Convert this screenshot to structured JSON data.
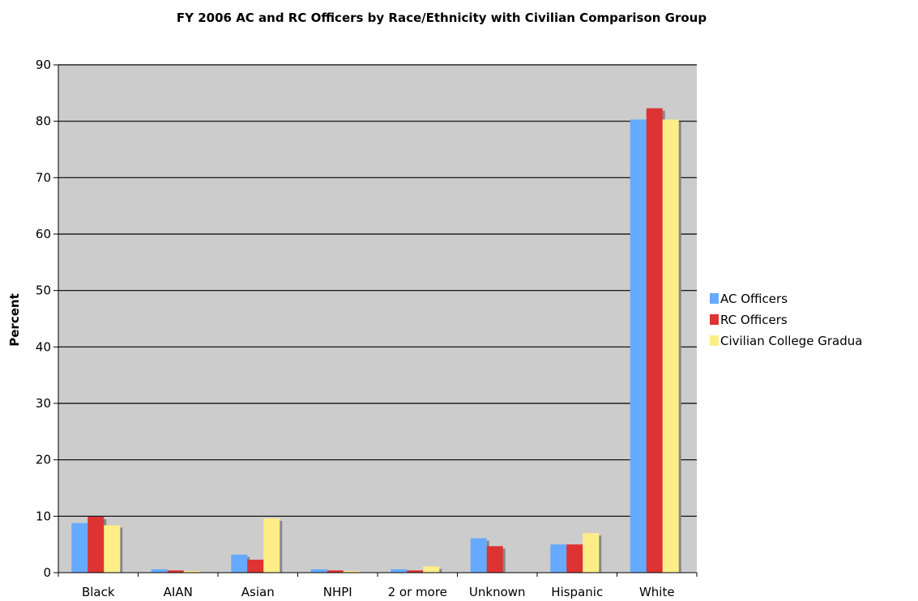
{
  "chart_data": {
    "type": "bar",
    "title": "FY 2006 AC and RC Officers by Race/Ethnicity with Civilian Comparison Group",
    "ylabel": "Percent",
    "xlabel": "",
    "ylim": [
      0,
      90
    ],
    "yticks": [
      0,
      10,
      20,
      30,
      40,
      50,
      60,
      70,
      80,
      90
    ],
    "grid": true,
    "legend_position": "right",
    "plot_background": "#cccccc",
    "categories": [
      "Black",
      "AIAN",
      "Asian",
      "NHPI",
      "2 or more",
      "Unknown",
      "Hispanic",
      "White"
    ],
    "series": [
      {
        "name": "AC Officers",
        "color": "#66aaff",
        "values": [
          8.8,
          0.6,
          3.2,
          0.6,
          0.6,
          6.1,
          5.0,
          80.3
        ]
      },
      {
        "name": "RC Officers",
        "color": "#dd3333",
        "values": [
          9.9,
          0.4,
          2.3,
          0.4,
          0.4,
          4.7,
          5.0,
          82.3
        ]
      },
      {
        "name": "Civilian College Graduates",
        "legend_label": "Civilian College Gradua",
        "color": "#ffee88",
        "values": [
          8.4,
          0.3,
          9.6,
          0.3,
          1.1,
          null,
          7.0,
          80.3
        ]
      }
    ]
  }
}
